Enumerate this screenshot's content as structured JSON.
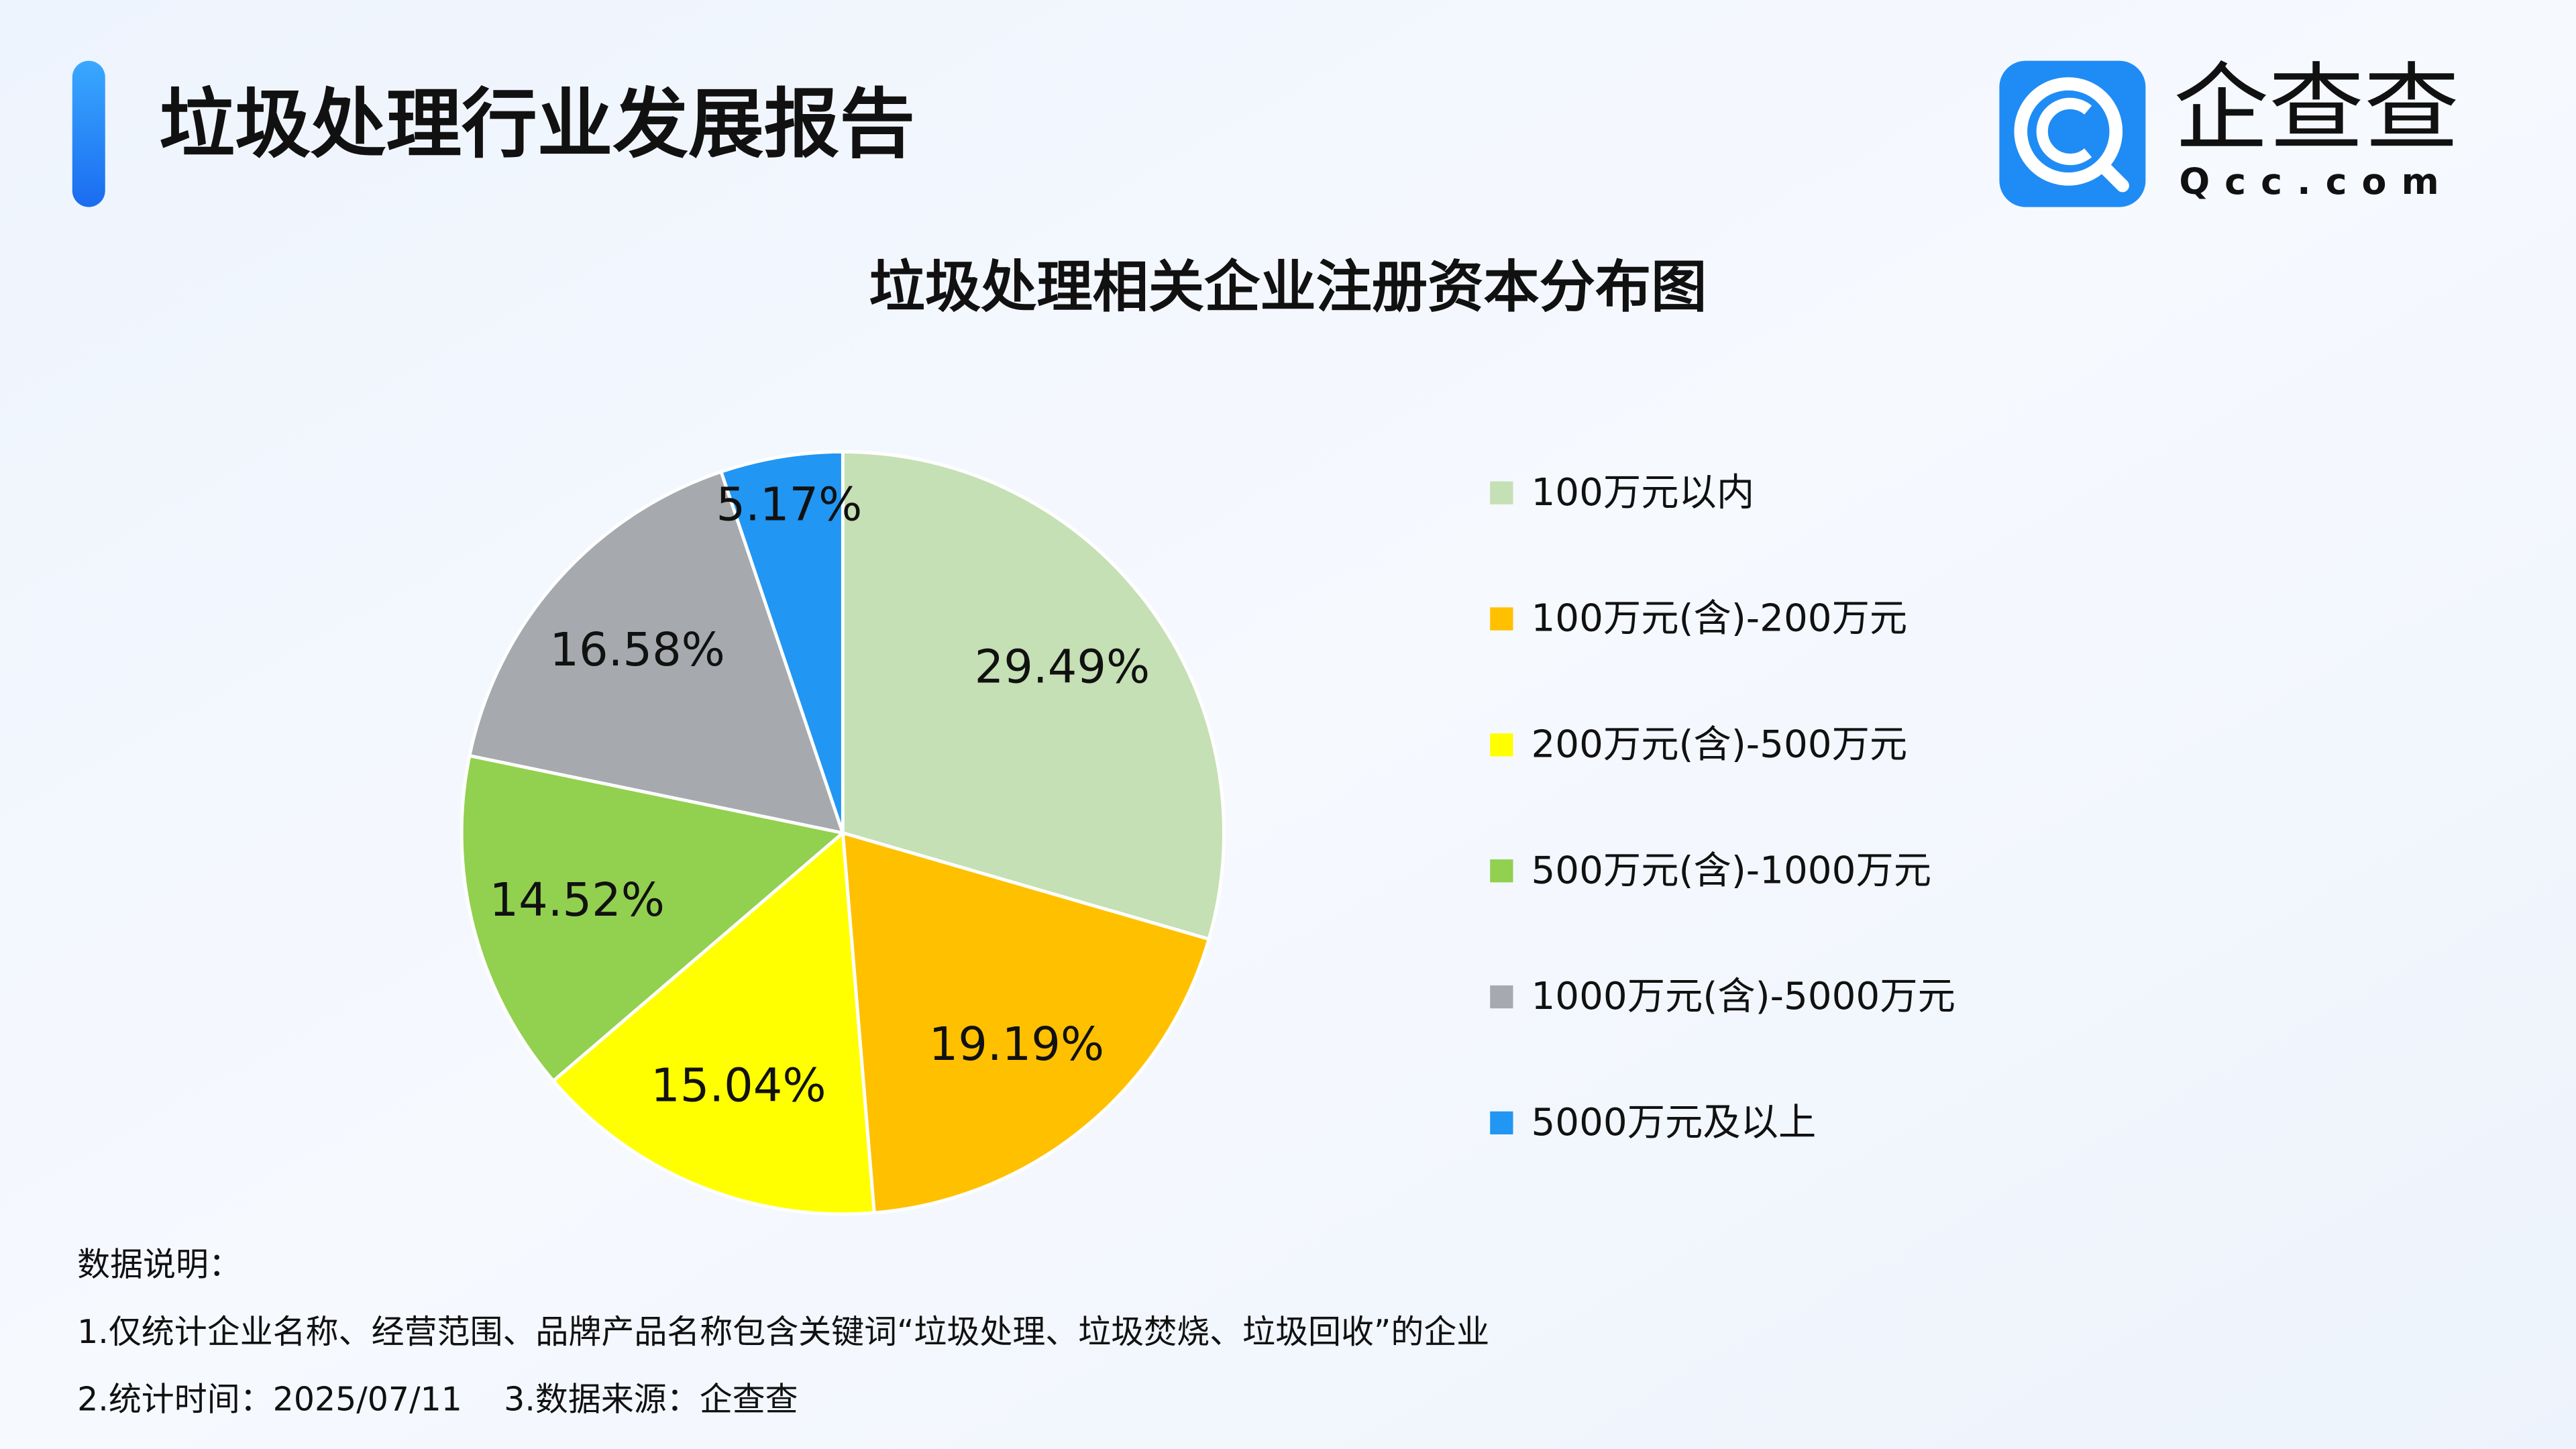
{
  "header": {
    "title": "垃圾处理行业发展报告",
    "logo_text": "企查查",
    "logo_domain": "Qcc.com"
  },
  "chart_data": {
    "type": "pie",
    "title": "垃圾处理相关企业注册资本分布图",
    "categories": [
      "100万元以内",
      "100万元(含)-200万元",
      "200万元(含)-500万元",
      "500万元(含)-1000万元",
      "1000万元(含)-5000万元",
      "5000万元及以上"
    ],
    "values": [
      29.49,
      19.19,
      15.04,
      14.52,
      16.58,
      5.17
    ],
    "value_labels": [
      "29.49%",
      "19.19%",
      "15.04%",
      "14.52%",
      "16.58%",
      "5.17%"
    ],
    "colors": [
      "#c5e0b4",
      "#ffc000",
      "#ffff00",
      "#92d050",
      "#a6a9ad",
      "#2196f3"
    ],
    "legend": "right"
  },
  "notes": {
    "heading": "数据说明：",
    "lines": [
      "1.仅统计企业名称、经营范围、品牌产品名称包含关键词“垃圾处理、垃圾焚烧、垃圾回收”的企业",
      "2.统计时间：2025/07/11    3.数据来源：企查查"
    ]
  }
}
